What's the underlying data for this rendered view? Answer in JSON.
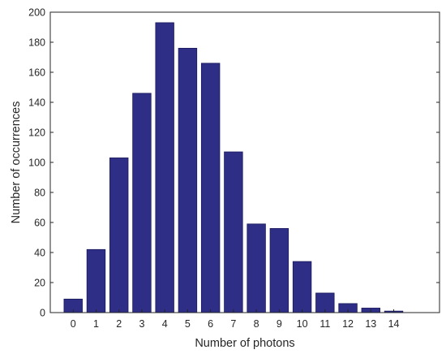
{
  "chart_data": {
    "type": "bar",
    "title": "",
    "xlabel": "Number of photons",
    "ylabel": "Number of occurrences",
    "categories": [
      "0",
      "1",
      "2",
      "3",
      "4",
      "5",
      "6",
      "7",
      "8",
      "9",
      "10",
      "11",
      "12",
      "13",
      "14"
    ],
    "values": [
      9,
      42,
      103,
      146,
      193,
      176,
      166,
      107,
      59,
      56,
      34,
      13,
      6,
      3,
      1
    ],
    "xlim": [
      -1,
      16
    ],
    "ylim": [
      0,
      200
    ],
    "yticks": [
      0,
      20,
      40,
      60,
      80,
      100,
      120,
      140,
      160,
      180,
      200
    ],
    "grid": false,
    "bar_color": "#2e2e86",
    "bar_edge_color": "#1a1a5c"
  }
}
